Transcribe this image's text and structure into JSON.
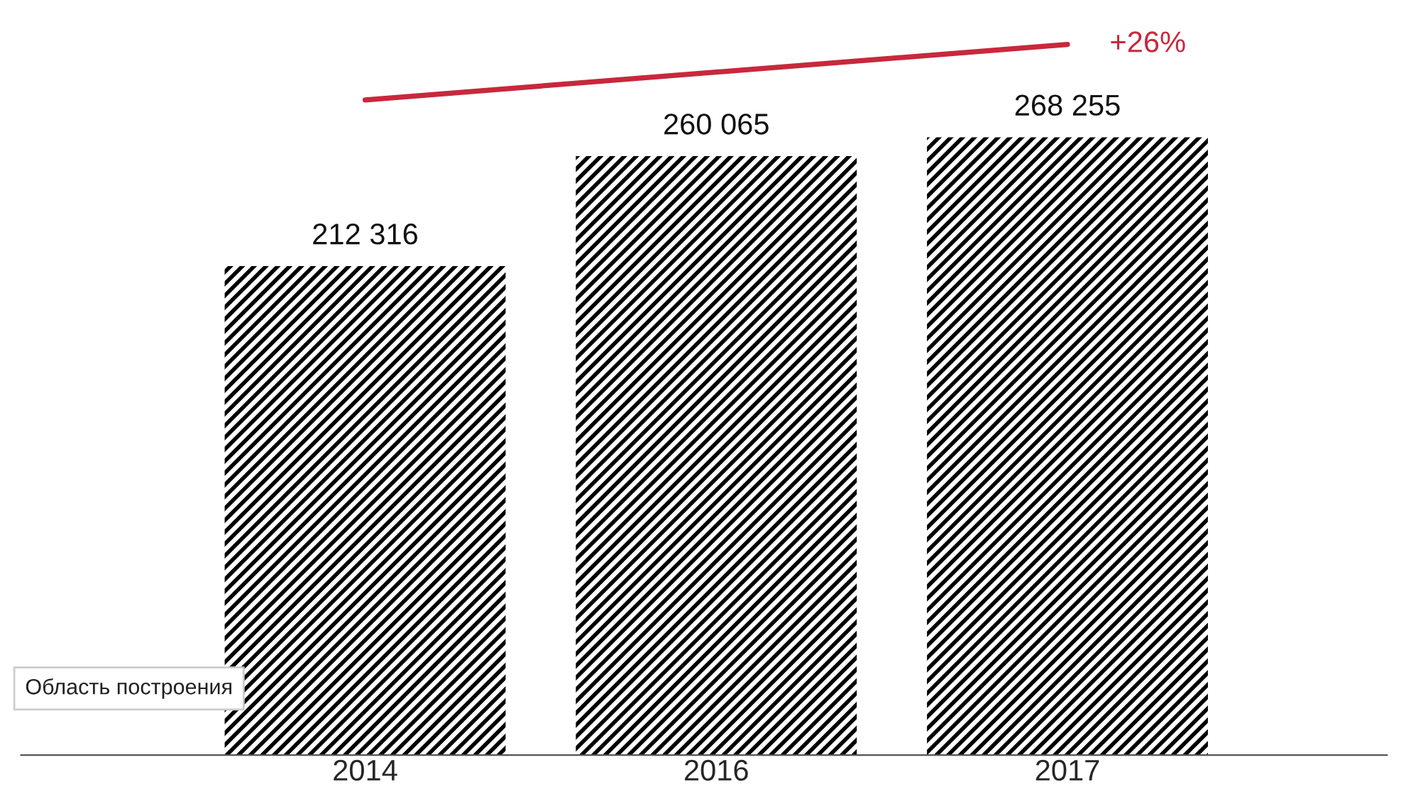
{
  "chart_data": {
    "type": "bar",
    "categories": [
      "2014",
      "2016",
      "2017"
    ],
    "series": [
      {
        "color": "#000000",
        "values": [
          212316,
          260065,
          268255
        ],
        "value_labels": [
          "212 316",
          "260 065",
          "268 255"
        ]
      },
      {
        "type": "line",
        "color": "#c8283c",
        "values": [
          284500,
          null,
          308600
        ],
        "marker": "none",
        "line_style": "solid"
      }
    ],
    "annotations": [
      "+26%",
      "Область построения"
    ],
    "legend": false,
    "grid": false
  }
}
